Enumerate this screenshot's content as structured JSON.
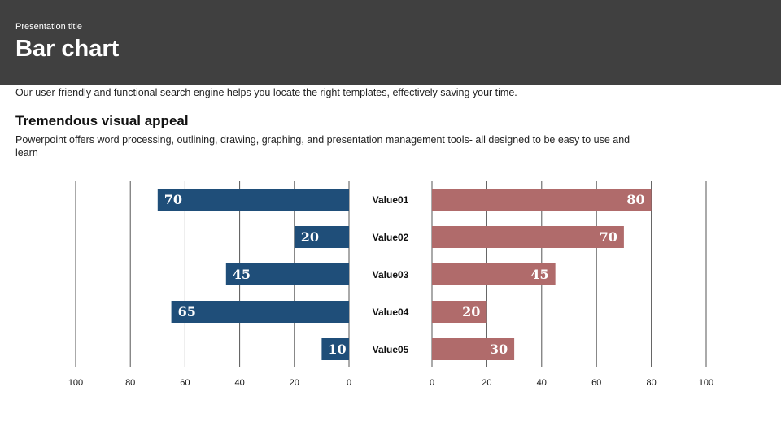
{
  "header": {
    "presentation_title": "Presentation title",
    "slide_title": "Bar chart"
  },
  "intro_text": "Our user-friendly and functional search engine helps you locate the right templates, effectively saving your time.",
  "subtitle": "Tremendous visual appeal",
  "body_text": "Powerpoint offers word processing, outlining, drawing, graphing, and presentation management tools- all designed to be easy to use and learn",
  "colors": {
    "header_bg": "#404040",
    "left_series": "#1f4e79",
    "right_series": "#b06b6b"
  },
  "chart_data": {
    "type": "bar",
    "orientation": "horizontal-butterfly",
    "categories": [
      "Value01",
      "Value02",
      "Value03",
      "Value04",
      "Value05"
    ],
    "series": [
      {
        "side": "left",
        "color": "#1f4e79",
        "values": [
          70,
          20,
          45,
          65,
          10
        ]
      },
      {
        "side": "right",
        "color": "#b06b6b",
        "values": [
          80,
          70,
          45,
          20,
          30
        ]
      }
    ],
    "left_ticks": [
      "100",
      "80",
      "60",
      "40",
      "20",
      "0"
    ],
    "right_ticks": [
      "0",
      "20",
      "40",
      "60",
      "80",
      "100"
    ],
    "xlim": [
      0,
      100
    ],
    "grid": true,
    "data_labels": true
  }
}
